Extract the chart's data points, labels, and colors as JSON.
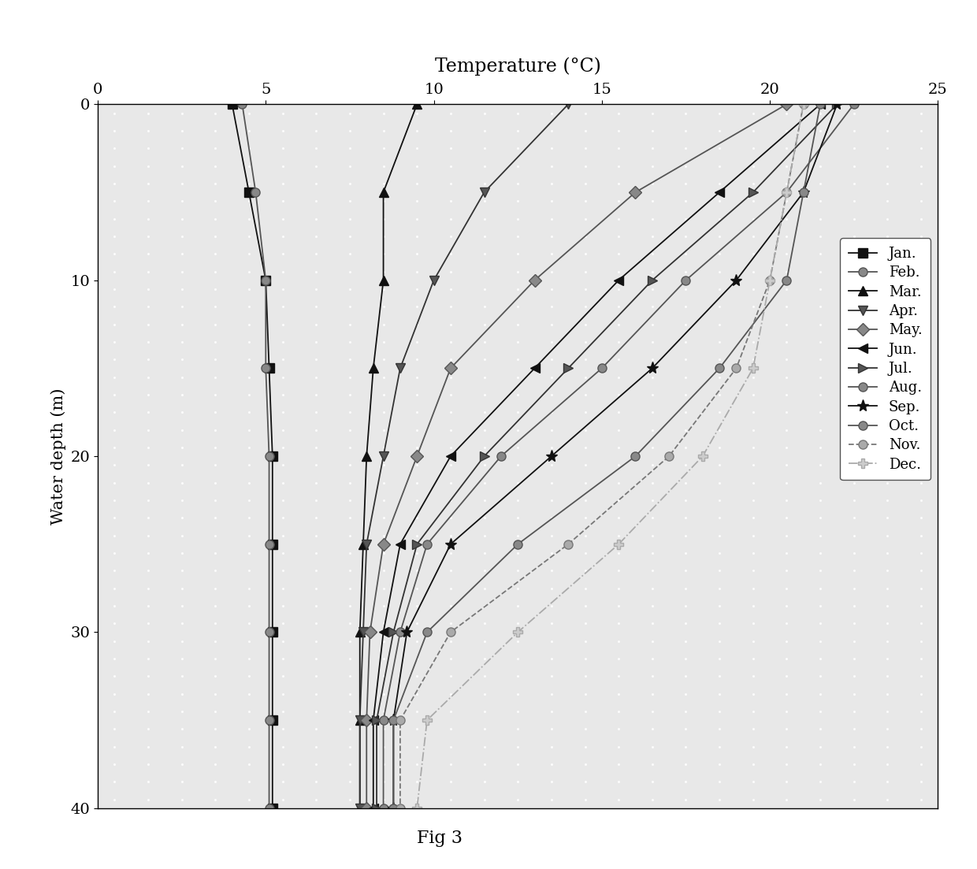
{
  "title": "Temperature (°C)",
  "ylabel": "Water depth (m)",
  "fig_caption": "Fig 3",
  "xlim": [
    0,
    25
  ],
  "ylim": [
    40,
    0
  ],
  "xticks": [
    0,
    5,
    10,
    15,
    20,
    25
  ],
  "yticks": [
    0,
    10,
    20,
    30,
    40
  ],
  "depths": [
    0,
    5,
    10,
    15,
    20,
    25,
    30,
    35,
    40
  ],
  "month_order": [
    "Jan.",
    "Feb.",
    "Mar.",
    "Apr.",
    "May.",
    "Jun.",
    "Jul.",
    "Aug.",
    "Sep.",
    "Oct.",
    "Nov.",
    "Dec."
  ],
  "month_data": {
    "Jan.": {
      "temps": [
        4.0,
        4.5,
        5.0,
        5.1,
        5.2,
        5.2,
        5.2,
        5.2,
        5.2
      ],
      "color": "#111111",
      "ls": "-",
      "marker": "s",
      "ms": 8,
      "mfc": "#111111"
    },
    "Feb.": {
      "temps": [
        4.3,
        4.7,
        5.0,
        5.0,
        5.1,
        5.1,
        5.1,
        5.1,
        5.1
      ],
      "color": "#555555",
      "ls": "-",
      "marker": "o",
      "ms": 8,
      "mfc": "#888888"
    },
    "Mar.": {
      "temps": [
        9.5,
        8.5,
        8.5,
        8.2,
        8.0,
        7.9,
        7.8,
        7.8,
        7.8
      ],
      "color": "#111111",
      "ls": "-",
      "marker": "^",
      "ms": 9,
      "mfc": "#111111"
    },
    "Apr.": {
      "temps": [
        14.0,
        11.5,
        10.0,
        9.0,
        8.5,
        8.0,
        7.9,
        7.8,
        7.8
      ],
      "color": "#333333",
      "ls": "-",
      "marker": "v",
      "ms": 9,
      "mfc": "#555555"
    },
    "May.": {
      "temps": [
        20.5,
        16.0,
        13.0,
        10.5,
        9.5,
        8.5,
        8.1,
        8.0,
        8.0
      ],
      "color": "#555555",
      "ls": "-",
      "marker": "D",
      "ms": 8,
      "mfc": "#888888"
    },
    "Jun.": {
      "temps": [
        21.5,
        18.5,
        15.5,
        13.0,
        10.5,
        9.0,
        8.5,
        8.2,
        8.2
      ],
      "color": "#111111",
      "ls": "-",
      "marker": "<",
      "ms": 9,
      "mfc": "#111111"
    },
    "Jul.": {
      "temps": [
        22.0,
        19.5,
        16.5,
        14.0,
        11.5,
        9.5,
        8.8,
        8.3,
        8.3
      ],
      "color": "#333333",
      "ls": "-",
      "marker": ">",
      "ms": 9,
      "mfc": "#555555"
    },
    "Aug.": {
      "temps": [
        22.5,
        20.5,
        17.5,
        15.0,
        12.0,
        9.8,
        9.0,
        8.5,
        8.5
      ],
      "color": "#555555",
      "ls": "-",
      "marker": "o",
      "ms": 8,
      "mfc": "#888888"
    },
    "Sep.": {
      "temps": [
        22.0,
        21.0,
        19.0,
        16.5,
        13.5,
        10.5,
        9.2,
        8.8,
        8.8
      ],
      "color": "#111111",
      "ls": "-",
      "marker": "*",
      "ms": 11,
      "mfc": "#111111"
    },
    "Oct.": {
      "temps": [
        21.5,
        21.0,
        20.5,
        18.5,
        16.0,
        12.5,
        9.8,
        8.8,
        8.8
      ],
      "color": "#555555",
      "ls": "-",
      "marker": "o",
      "ms": 8,
      "mfc": "#888888"
    },
    "Nov.": {
      "temps": [
        21.0,
        20.5,
        20.0,
        19.0,
        17.0,
        14.0,
        10.5,
        9.0,
        9.0
      ],
      "color": "#777777",
      "ls": "--",
      "marker": "o",
      "ms": 8,
      "mfc": "#aaaaaa"
    },
    "Dec.": {
      "temps": [
        21.0,
        20.5,
        20.0,
        19.5,
        18.0,
        15.5,
        12.5,
        9.8,
        9.5
      ],
      "color": "#aaaaaa",
      "ls": "-.",
      "marker": "P",
      "ms": 9,
      "mfc": "#cccccc"
    }
  },
  "title_fontsize": 17,
  "axis_fontsize": 15,
  "tick_fontsize": 14,
  "legend_fontsize": 13
}
